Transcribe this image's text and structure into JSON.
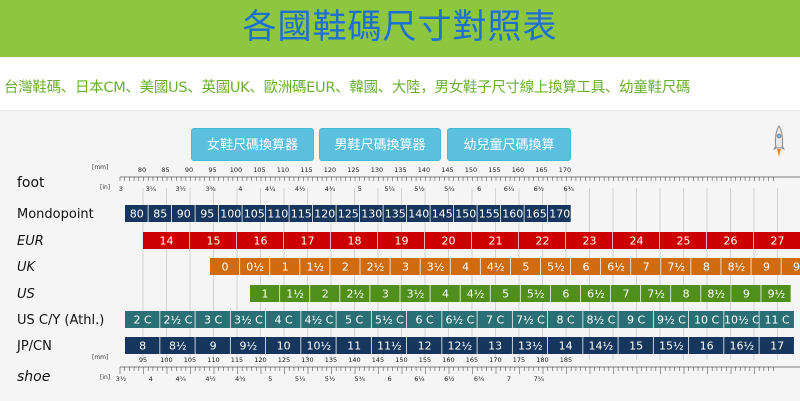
{
  "title": "各國鞋碼尺寸對照表",
  "subtitle": "台灣鞋碼、日本CM、美國US、英國UK、歐洲碼EUR、韓國、大陸，男女鞋子尺寸線上換算工具、幼童鞋尺碼",
  "tabs": [
    "女鞋尺碼換算器",
    "男鞋尺碼換算器",
    "幼兒童尺碼換算"
  ],
  "colors": {
    "banner": "#8dc63f",
    "title": "#1d6fd1",
    "subtitle": "#6ab02e",
    "tab": "#5bc0de",
    "mondopoint": "#17365d",
    "eur": "#cc0000",
    "uk": "#d06b10",
    "us": "#4f8f1a",
    "usc": "#2a6f75",
    "jp": "#17365d"
  },
  "chart_data": {
    "type": "table",
    "ruler_top": {
      "label": "foot",
      "mm_unit": "[mm]",
      "in_unit": "[in]",
      "mm_ticks": [
        "80",
        "85",
        "90",
        "95",
        "100",
        "105",
        "110",
        "115",
        "120",
        "125",
        "130",
        "135",
        "140",
        "145",
        "150",
        "155",
        "160",
        "165",
        "170"
      ],
      "in_ticks": [
        "3",
        "3¼",
        "3½",
        "3¾",
        "4",
        "4¼",
        "4½",
        "4¾",
        "5",
        "5¼",
        "5½",
        "5¾",
        "6",
        "6¼",
        "6½",
        "6¾"
      ]
    },
    "ruler_bottom": {
      "label": "shoe",
      "mm_unit": "[mm]",
      "in_unit": "[in]",
      "mm_ticks": [
        "95",
        "100",
        "105",
        "110",
        "115",
        "120",
        "125",
        "130",
        "135",
        "140",
        "145",
        "150",
        "155",
        "160",
        "165",
        "170",
        "175",
        "180",
        "185"
      ],
      "in_ticks": [
        "3½",
        "4",
        "4¼",
        "4½",
        "4¾",
        "5",
        "5¼",
        "5½",
        "5¾",
        "6",
        "6¼",
        "6½",
        "6¾",
        "7",
        "7¼"
      ]
    },
    "rows": [
      {
        "name": "Mondopoint",
        "italic": false,
        "color": "#17365d",
        "values": [
          "80",
          "85",
          "90",
          "95",
          "100",
          "105",
          "110",
          "115",
          "120",
          "125",
          "130",
          "135",
          "140",
          "145",
          "150",
          "155",
          "160",
          "165",
          "170"
        ]
      },
      {
        "name": "EUR",
        "italic": true,
        "color": "#cc0000",
        "values": [
          "14",
          "15",
          "16",
          "17",
          "18",
          "19",
          "20",
          "21",
          "22",
          "23",
          "24",
          "25",
          "26",
          "27"
        ]
      },
      {
        "name": "UK",
        "italic": true,
        "color": "#d06b10",
        "values": [
          "0",
          "0½",
          "1",
          "1½",
          "2",
          "2½",
          "3",
          "3½",
          "4",
          "4½",
          "5",
          "5½",
          "6",
          "6½",
          "7",
          "7½",
          "8",
          "8½",
          "9",
          "9"
        ]
      },
      {
        "name": "US",
        "italic": true,
        "color": "#4f8f1a",
        "values": [
          "1",
          "1½",
          "2",
          "2½",
          "3",
          "3½",
          "4",
          "4½",
          "5",
          "5½",
          "6",
          "6½",
          "7",
          "7½",
          "8",
          "8½",
          "9",
          "9½"
        ]
      },
      {
        "name": "US C/Y (Athl.)",
        "italic": false,
        "color": "#2a6f75",
        "values": [
          "2 C",
          "2½ C",
          "3 C",
          "3½ C",
          "4 C",
          "4½ C",
          "5 C",
          "5½ C",
          "6 C",
          "6½ C",
          "7 C",
          "7½ C",
          "8 C",
          "8½ C",
          "9 C",
          "9½ C",
          "10 C",
          "10½ C",
          "11 C"
        ]
      },
      {
        "name": "JP/CN",
        "italic": false,
        "color": "#17365d",
        "values": [
          "8",
          "8½",
          "9",
          "9½",
          "10",
          "10½",
          "11",
          "11½",
          "12",
          "12½",
          "13",
          "13½",
          "14",
          "14½",
          "15",
          "15½",
          "16",
          "16½",
          "17"
        ]
      }
    ]
  }
}
